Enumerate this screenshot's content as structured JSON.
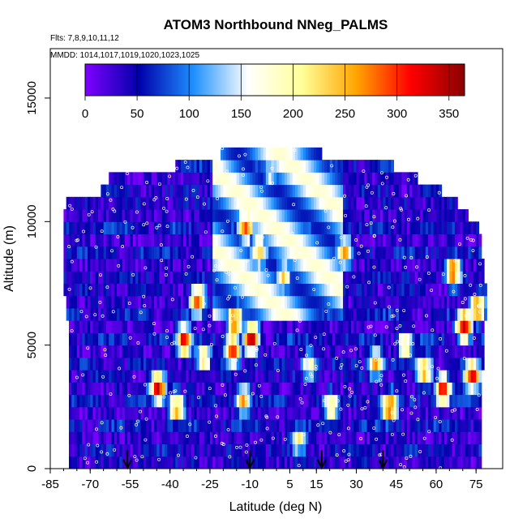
{
  "chart_data": {
    "type": "heatmap",
    "title": "ATOM3 Northbound NNeg_PALMS",
    "subtitle_flights": "Flts: 7,8,9,10,11,12",
    "subtitle_dates": "MMDD: 1014,1017,1019,1020,1023,1025",
    "xlabel": "Latitude (deg N)",
    "ylabel": "Altitude (m)",
    "xlim": [
      -85,
      85
    ],
    "ylim": [
      0,
      17000
    ],
    "x_ticks": [
      -85,
      -70,
      -55,
      -40,
      -25,
      -10,
      5,
      15,
      30,
      45,
      60,
      75
    ],
    "y_ticks": [
      0,
      5000,
      10000,
      15000
    ],
    "colorbar": {
      "range": [
        0,
        365
      ],
      "ticks": [
        0,
        50,
        100,
        150,
        200,
        250,
        300,
        350
      ],
      "colors": [
        "#7f00ff",
        "#0000aa",
        "#1e90ff",
        "#ffffff",
        "#ffff99",
        "#ffa500",
        "#ff0000",
        "#8b0000"
      ]
    },
    "altitude_bands": [
      {
        "alt": [
          0,
          500
        ],
        "lat": [
          -78,
          77
        ]
      },
      {
        "alt": [
          500,
          1000
        ],
        "lat": [
          -78,
          77
        ]
      },
      {
        "alt": [
          1000,
          1500
        ],
        "lat": [
          -78,
          77
        ]
      },
      {
        "alt": [
          1500,
          2000
        ],
        "lat": [
          -78,
          77
        ]
      },
      {
        "alt": [
          2000,
          2500
        ],
        "lat": [
          -78,
          77
        ]
      },
      {
        "alt": [
          2500,
          3000
        ],
        "lat": [
          -78,
          77
        ]
      },
      {
        "alt": [
          3000,
          3500
        ],
        "lat": [
          -78,
          77
        ]
      },
      {
        "alt": [
          3500,
          4000
        ],
        "lat": [
          -78,
          77
        ]
      },
      {
        "alt": [
          4000,
          4500
        ],
        "lat": [
          -78,
          78
        ]
      },
      {
        "alt": [
          4500,
          5000
        ],
        "lat": [
          -78,
          78
        ]
      },
      {
        "alt": [
          5000,
          5500
        ],
        "lat": [
          -78,
          78
        ]
      },
      {
        "alt": [
          5500,
          6000
        ],
        "lat": [
          -78,
          78
        ]
      },
      {
        "alt": [
          6000,
          6500
        ],
        "lat": [
          -79,
          79
        ]
      },
      {
        "alt": [
          6500,
          7000
        ],
        "lat": [
          -79,
          79
        ]
      },
      {
        "alt": [
          7000,
          7500
        ],
        "lat": [
          -80,
          79
        ]
      },
      {
        "alt": [
          7500,
          8000
        ],
        "lat": [
          -80,
          78
        ]
      },
      {
        "alt": [
          8000,
          8500
        ],
        "lat": [
          -80,
          78
        ]
      },
      {
        "alt": [
          8500,
          9000
        ],
        "lat": [
          -80,
          77
        ]
      },
      {
        "alt": [
          9000,
          9500
        ],
        "lat": [
          -80,
          77
        ]
      },
      {
        "alt": [
          9500,
          10000
        ],
        "lat": [
          -80,
          76
        ]
      },
      {
        "alt": [
          10000,
          10500
        ],
        "lat": [
          -80,
          72
        ]
      },
      {
        "alt": [
          10500,
          11000
        ],
        "lat": [
          -79,
          68
        ]
      },
      {
        "alt": [
          11000,
          11500
        ],
        "lat": [
          -66,
          62
        ]
      },
      {
        "alt": [
          11500,
          12000
        ],
        "lat": [
          -63,
          53
        ]
      },
      {
        "alt": [
          12000,
          12500
        ],
        "lat": [
          -38,
          44
        ]
      },
      {
        "alt": [
          12500,
          13000
        ],
        "lat": [
          -21,
          17
        ]
      }
    ],
    "concentration_features": [
      {
        "lat": -58,
        "alt": 500,
        "value": 20
      },
      {
        "lat": -45,
        "alt": 3300,
        "value": 340
      },
      {
        "lat": -38,
        "alt": 2500,
        "value": 270
      },
      {
        "lat": -35,
        "alt": 5200,
        "value": 330
      },
      {
        "lat": -30,
        "alt": 6800,
        "value": 290
      },
      {
        "lat": -28,
        "alt": 4500,
        "value": 230
      },
      {
        "lat": -17,
        "alt": 4800,
        "value": 330
      },
      {
        "lat": -16,
        "alt": 6000,
        "value": 300
      },
      {
        "lat": -13,
        "alt": 2800,
        "value": 260
      },
      {
        "lat": -12,
        "alt": 9800,
        "value": 300
      },
      {
        "lat": -10,
        "alt": 5300,
        "value": 345
      },
      {
        "lat": -7,
        "alt": 8800,
        "value": 240
      },
      {
        "lat": -3,
        "alt": 12000,
        "value": 170
      },
      {
        "lat": 2,
        "alt": 7800,
        "value": 220
      },
      {
        "lat": 8,
        "alt": 1200,
        "value": 200
      },
      {
        "lat": 12,
        "alt": 4200,
        "value": 190
      },
      {
        "lat": 20,
        "alt": 2500,
        "value": 230
      },
      {
        "lat": 25,
        "alt": 8800,
        "value": 250
      },
      {
        "lat": 37,
        "alt": 4300,
        "value": 260
      },
      {
        "lat": 42,
        "alt": 2500,
        "value": 320
      },
      {
        "lat": 48,
        "alt": 5000,
        "value": 235
      },
      {
        "lat": 55,
        "alt": 4000,
        "value": 280
      },
      {
        "lat": 62,
        "alt": 3200,
        "value": 320
      },
      {
        "lat": 66,
        "alt": 8000,
        "value": 300
      },
      {
        "lat": 70,
        "alt": 5800,
        "value": 350
      },
      {
        "lat": 73,
        "alt": 3800,
        "value": 340
      },
      {
        "lat": 75,
        "alt": 6500,
        "value": 270
      }
    ],
    "arrow_latitudes": [
      -56,
      -10,
      17,
      40
    ]
  }
}
